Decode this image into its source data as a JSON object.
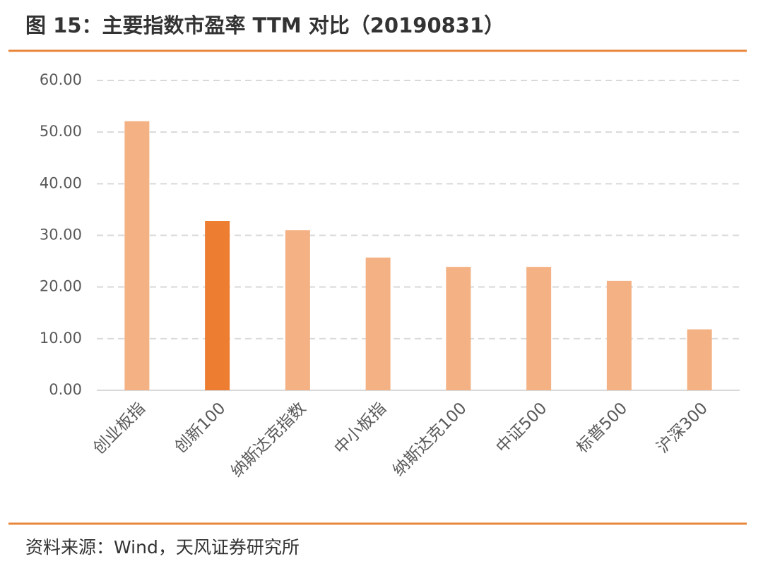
{
  "title": "图 15：主要指数市盈率 TTM 对比（20190831）",
  "source": "资料来源：Wind，天风证券研究所",
  "chart_data": {
    "type": "bar",
    "categories": [
      "创业板指",
      "创新100",
      "纳斯达克指数",
      "中小板指",
      "纳斯达克100",
      "中证500",
      "标普500",
      "沪深300"
    ],
    "values": [
      52.1,
      32.8,
      31.0,
      25.7,
      23.9,
      23.9,
      21.2,
      11.8
    ],
    "colors": [
      "#f4b183",
      "#ed7d31",
      "#f4b183",
      "#f4b183",
      "#f4b183",
      "#f4b183",
      "#f4b183",
      "#f4b183"
    ],
    "ylim": [
      0,
      60
    ],
    "yticks": [
      {
        "value": 0,
        "label": "0.00"
      },
      {
        "value": 10,
        "label": "10.00"
      },
      {
        "value": 20,
        "label": "20.00"
      },
      {
        "value": 30,
        "label": "30.00"
      },
      {
        "value": 40,
        "label": "40.00"
      },
      {
        "value": 50,
        "label": "50.00"
      },
      {
        "value": 60,
        "label": "60.00"
      }
    ],
    "grid": true
  }
}
